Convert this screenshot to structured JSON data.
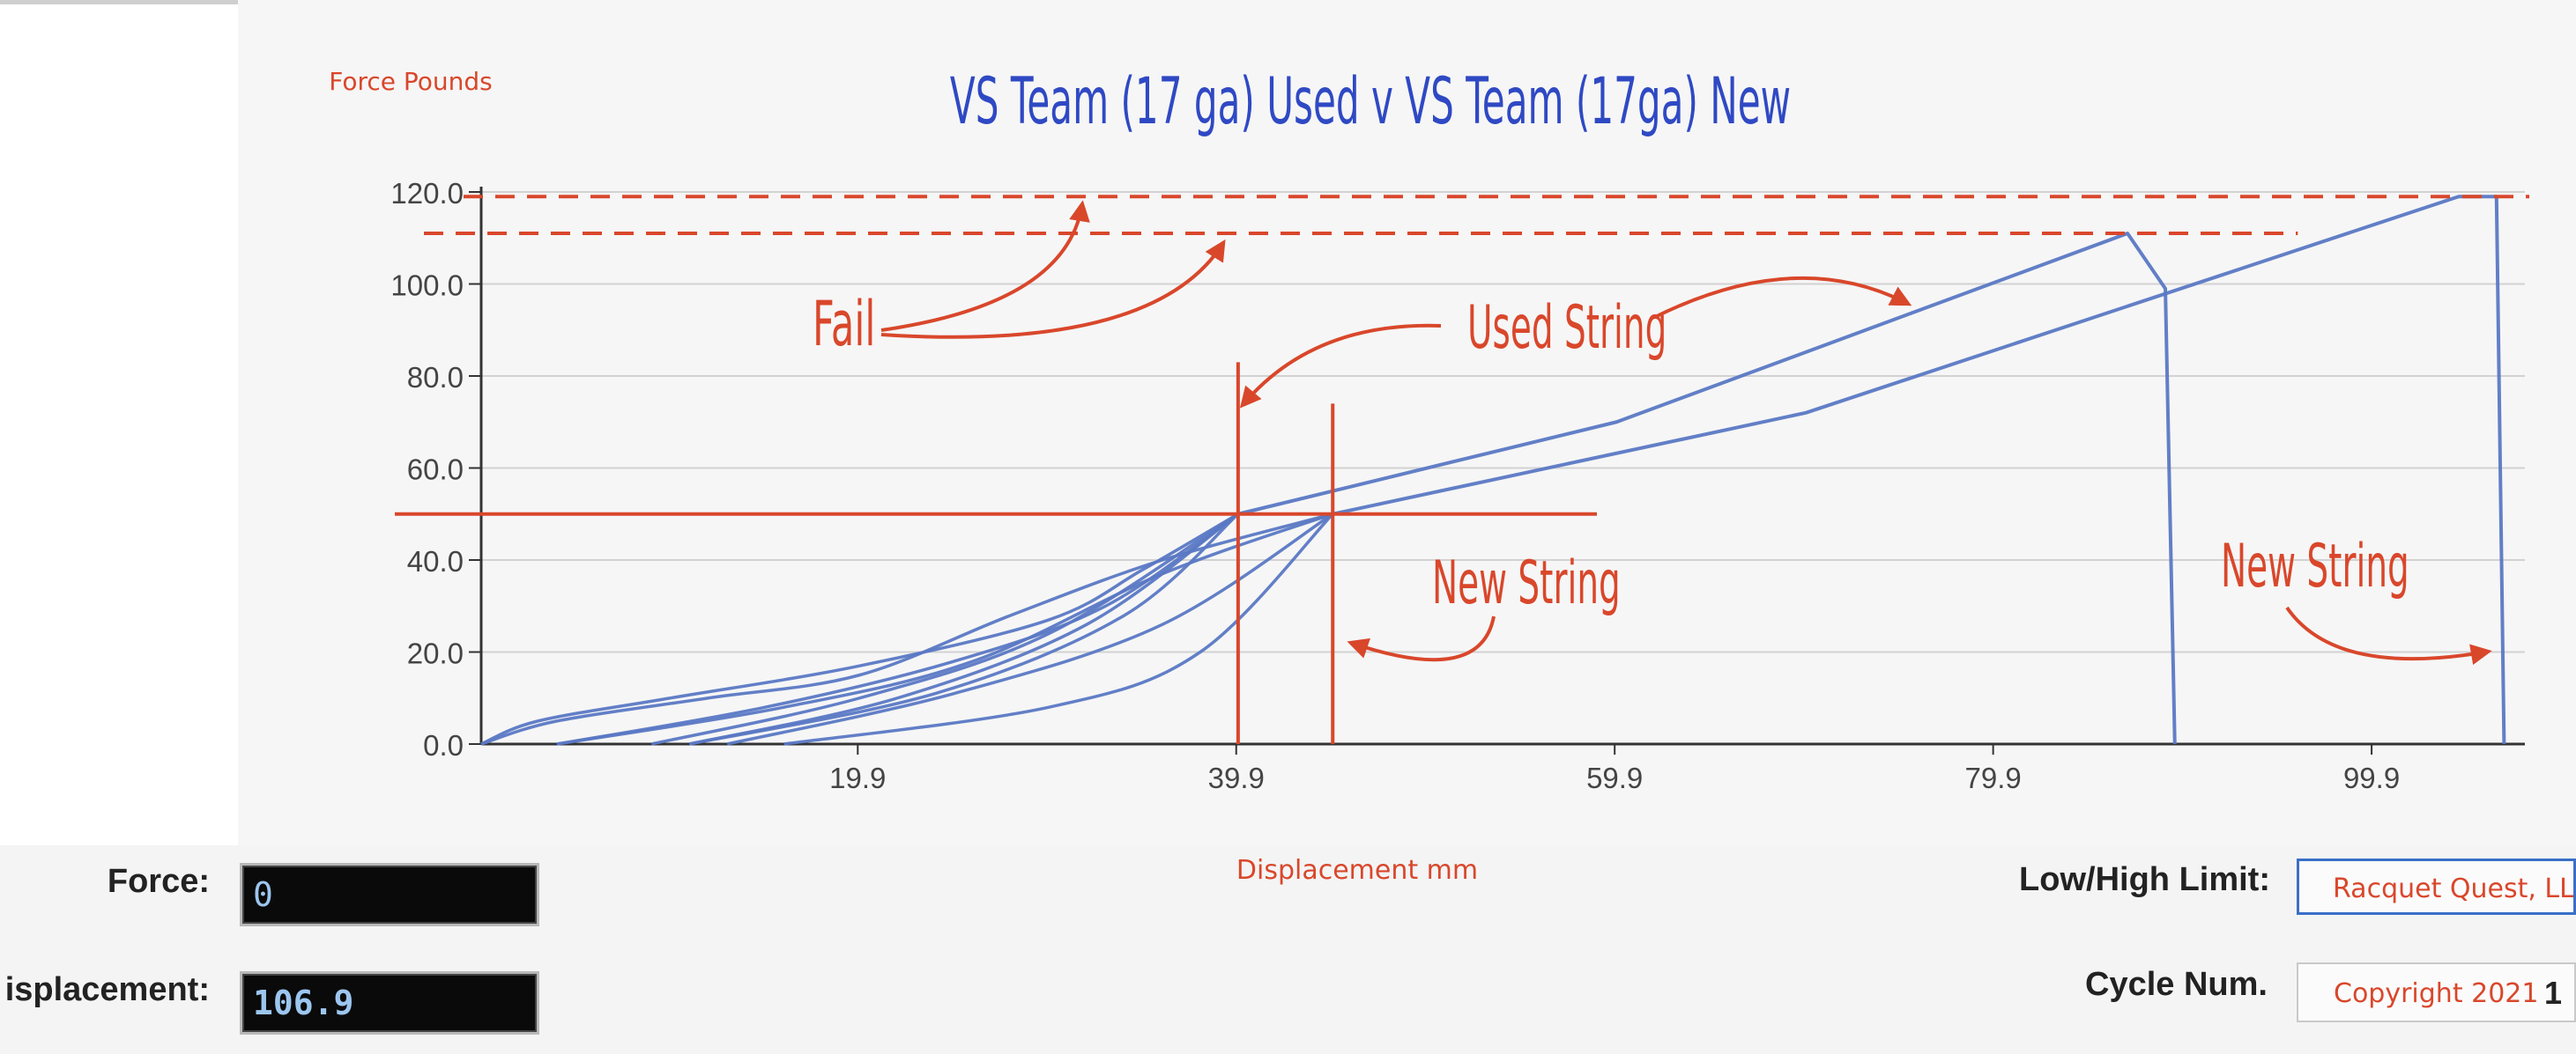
{
  "chart_data": {
    "type": "line",
    "title": "VS Team (17 ga) Used v VS Team (17ga) New",
    "ylabel": "Force Pounds",
    "xlabel": "Displacement mm",
    "ylim": [
      0,
      120
    ],
    "xlim": [
      0,
      108
    ],
    "y_ticks": [
      "0.0",
      "20.0",
      "40.0",
      "60.0",
      "80.0",
      "100.0",
      "120.0"
    ],
    "x_ticks": [
      "19.9",
      "39.9",
      "59.9",
      "79.9",
      "99.9"
    ],
    "grid": true,
    "series": [
      {
        "curves": [
          [
            [
              0,
              0
            ],
            [
              3,
              5
            ],
            [
              10,
              10
            ],
            [
              20,
              17
            ],
            [
              30,
              27
            ],
            [
              35,
              38
            ],
            [
              40,
              50
            ]
          ],
          [
            [
              4,
              0
            ],
            [
              15,
              8
            ],
            [
              25,
              18
            ],
            [
              33,
              30
            ],
            [
              40,
              50
            ]
          ],
          [
            [
              9,
              0
            ],
            [
              20,
              10
            ],
            [
              30,
              24
            ],
            [
              40,
              50
            ]
          ],
          [
            [
              11,
              0
            ],
            [
              22,
              10
            ],
            [
              32,
              26
            ],
            [
              40,
              50
            ]
          ],
          [
            [
              11,
              0
            ],
            [
              24,
              11
            ],
            [
              34,
              28
            ],
            [
              40,
              50
            ]
          ],
          [
            [
              40,
              50
            ],
            [
              60,
              70
            ],
            [
              87,
              111
            ],
            [
              89,
              99
            ],
            [
              89.5,
              0
            ]
          ]
        ]
      },
      {
        "curves": [
          [
            [
              0,
              0
            ],
            [
              4,
              5
            ],
            [
              12,
              10
            ],
            [
              20,
              15
            ],
            [
              28,
              28
            ],
            [
              36,
              40
            ],
            [
              45,
              50
            ]
          ],
          [
            [
              4,
              0
            ],
            [
              16,
              8
            ],
            [
              26,
              18
            ],
            [
              36,
              37
            ],
            [
              45,
              50
            ]
          ],
          [
            [
              13,
              0
            ],
            [
              25,
              11
            ],
            [
              36,
              26
            ],
            [
              45,
              50
            ]
          ],
          [
            [
              16,
              0
            ],
            [
              30,
              8
            ],
            [
              38,
              20
            ],
            [
              45,
              50
            ]
          ],
          [
            [
              45,
              50
            ],
            [
              70,
              72
            ],
            [
              104.5,
              119
            ],
            [
              106.5,
              119
            ],
            [
              106.9,
              0
            ]
          ]
        ]
      }
    ],
    "annotations": {
      "fail": "Fail",
      "used_string": "Used String",
      "new_string_1": "New String",
      "new_string_2": "New String",
      "reference_levels": {
        "used_fail_force": 111,
        "new_fail_force": 119,
        "cycle_force": 50,
        "used_cycle_disp": 40,
        "new_cycle_disp": 45
      }
    }
  },
  "colors": {
    "curve": "#5a78c4",
    "annotation": "#d9472b",
    "title": "#2f49c4",
    "grid": "#d2d2d2",
    "axis": "#333333"
  },
  "controls": {
    "force_label": "Force:",
    "force_value": "0",
    "displacement_label": "isplacement:",
    "displacement_value": "106.9",
    "limit_label": "Low/High Limit:",
    "limit_value": "Racquet Quest, LLC",
    "cycle_label": "Cycle Num.",
    "cycle_value": "Copyright 2021",
    "cycle_number": "1"
  }
}
